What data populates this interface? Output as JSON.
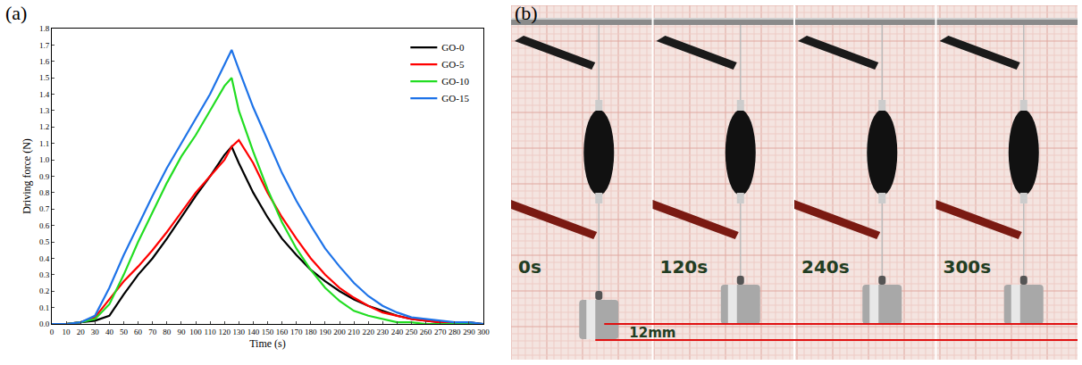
{
  "chart_data": {
    "type": "line",
    "x_label": "Time (s)",
    "y_label": "Driving force (N)",
    "x": [
      0,
      10,
      20,
      30,
      40,
      50,
      60,
      70,
      80,
      90,
      100,
      110,
      120,
      125,
      130,
      140,
      150,
      160,
      170,
      180,
      190,
      200,
      210,
      220,
      230,
      240,
      250,
      260,
      270,
      280,
      290,
      300
    ],
    "series": [
      {
        "name": "GO-0",
        "color": "#000000",
        "values": [
          0,
          0,
          0.01,
          0.02,
          0.05,
          0.18,
          0.3,
          0.4,
          0.52,
          0.65,
          0.78,
          0.9,
          1.03,
          1.08,
          0.98,
          0.8,
          0.65,
          0.52,
          0.42,
          0.33,
          0.26,
          0.2,
          0.15,
          0.11,
          0.08,
          0.05,
          0.03,
          0.02,
          0.01,
          0.01,
          0.01,
          0
        ]
      },
      {
        "name": "GO-5",
        "color": "#ff0000",
        "values": [
          0,
          0,
          0.01,
          0.04,
          0.15,
          0.26,
          0.35,
          0.45,
          0.56,
          0.68,
          0.8,
          0.9,
          1.0,
          1.08,
          1.12,
          0.98,
          0.8,
          0.65,
          0.52,
          0.4,
          0.3,
          0.22,
          0.16,
          0.11,
          0.07,
          0.05,
          0.03,
          0.02,
          0.01,
          0.01,
          0,
          0
        ]
      },
      {
        "name": "GO-10",
        "color": "#22dd22",
        "values": [
          0,
          0,
          0.01,
          0.03,
          0.12,
          0.3,
          0.5,
          0.68,
          0.86,
          1.02,
          1.15,
          1.3,
          1.45,
          1.5,
          1.3,
          1.05,
          0.82,
          0.62,
          0.46,
          0.33,
          0.22,
          0.14,
          0.08,
          0.05,
          0.03,
          0.01,
          0.01,
          0,
          0,
          0,
          0,
          0
        ]
      },
      {
        "name": "GO-15",
        "color": "#1e73e8",
        "values": [
          0,
          0,
          0.01,
          0.05,
          0.22,
          0.42,
          0.6,
          0.78,
          0.95,
          1.1,
          1.25,
          1.4,
          1.58,
          1.67,
          1.55,
          1.32,
          1.12,
          0.92,
          0.75,
          0.6,
          0.46,
          0.35,
          0.25,
          0.17,
          0.11,
          0.07,
          0.04,
          0.03,
          0.02,
          0.01,
          0.01,
          0
        ]
      }
    ],
    "xlim": [
      0,
      300
    ],
    "xticks": [
      0,
      10,
      20,
      30,
      40,
      50,
      60,
      70,
      80,
      90,
      100,
      110,
      120,
      130,
      140,
      150,
      160,
      170,
      180,
      190,
      200,
      210,
      220,
      230,
      240,
      250,
      260,
      270,
      280,
      290,
      300
    ],
    "ylim": [
      0,
      1.8
    ],
    "yticks": [
      {
        "value": 0,
        "label": "0.0"
      },
      0.1,
      0.2,
      0.3,
      0.4,
      0.5,
      0.6,
      0.7,
      0.8,
      0.9,
      {
        "value": 1,
        "label": "1.0"
      },
      1.1,
      1.2,
      1.3,
      1.4,
      1.5,
      1.6,
      1.7,
      1.8
    ],
    "grid": false,
    "legend": "top-right"
  },
  "panel_labels": {
    "a": "(a)",
    "b": "(b)"
  },
  "photo": {
    "frames": [
      "0s",
      "120s",
      "240s",
      "300s"
    ],
    "scale_label": "12mm"
  }
}
